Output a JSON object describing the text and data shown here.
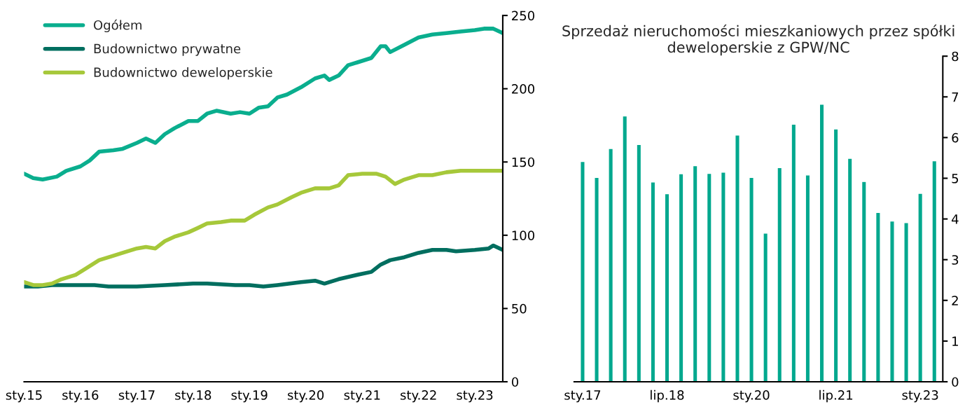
{
  "chart_data": [
    {
      "type": "line",
      "legend": "top left",
      "grid": false,
      "ylim": [
        0,
        250
      ],
      "yticks": [
        0,
        50,
        100,
        150,
        200,
        250
      ],
      "xlim": [
        "2015-01",
        "2023-07"
      ],
      "xticks": [
        {
          "value": "2015-01",
          "label": "sty.15"
        },
        {
          "value": "2016-01",
          "label": "sty.16"
        },
        {
          "value": "2017-01",
          "label": "sty.17"
        },
        {
          "value": "2018-01",
          "label": "sty.18"
        },
        {
          "value": "2019-01",
          "label": "sty.19"
        },
        {
          "value": "2020-01",
          "label": "sty.20"
        },
        {
          "value": "2021-01",
          "label": "sty.21"
        },
        {
          "value": "2022-01",
          "label": "sty.22"
        },
        {
          "value": "2023-01",
          "label": "sty.23"
        }
      ],
      "series": [
        {
          "name": "Ogółem",
          "color": "#0aae8e",
          "x": [
            "2015-01",
            "2015-03",
            "2015-05",
            "2015-08",
            "2015-10",
            "2016-01",
            "2016-03",
            "2016-05",
            "2016-08",
            "2016-10",
            "2017-01",
            "2017-03",
            "2017-05",
            "2017-07",
            "2017-09",
            "2017-12",
            "2018-02",
            "2018-04",
            "2018-06",
            "2018-09",
            "2018-11",
            "2019-01",
            "2019-03",
            "2019-05",
            "2019-07",
            "2019-09",
            "2019-12",
            "2020-03",
            "2020-05",
            "2020-06",
            "2020-08",
            "2020-10",
            "2020-12",
            "2021-03",
            "2021-05",
            "2021-06",
            "2021-07",
            "2021-10",
            "2022-01",
            "2022-04",
            "2022-07",
            "2022-10",
            "2023-01",
            "2023-03",
            "2023-05",
            "2023-07"
          ],
          "values": [
            142,
            139,
            138,
            140,
            144,
            147,
            151,
            157,
            158,
            159,
            163,
            166,
            163,
            169,
            173,
            178,
            178,
            183,
            185,
            183,
            184,
            183,
            187,
            188,
            194,
            196,
            201,
            207,
            209,
            206,
            209,
            216,
            218,
            221,
            229,
            229,
            225,
            230,
            235,
            237,
            238,
            239,
            240,
            241,
            241,
            238
          ]
        },
        {
          "name": "Budownictwo prywatne",
          "color": "#006e5f",
          "x": [
            "2015-01",
            "2015-04",
            "2015-07",
            "2015-12",
            "2016-04",
            "2016-07",
            "2017-01",
            "2017-07",
            "2018-01",
            "2018-04",
            "2018-10",
            "2019-01",
            "2019-04",
            "2019-07",
            "2019-12",
            "2020-03",
            "2020-05",
            "2020-08",
            "2020-12",
            "2021-03",
            "2021-05",
            "2021-07",
            "2021-10",
            "2022-01",
            "2022-04",
            "2022-07",
            "2022-09",
            "2023-01",
            "2023-04",
            "2023-05",
            "2023-07"
          ],
          "values": [
            65,
            65,
            66,
            66,
            66,
            65,
            65,
            66,
            67,
            67,
            66,
            66,
            65,
            66,
            68,
            69,
            67,
            70,
            73,
            75,
            80,
            83,
            85,
            88,
            90,
            90,
            89,
            90,
            91,
            93,
            90
          ]
        },
        {
          "name": "Budownictwo deweloperskie",
          "color": "#a6c83a",
          "x": [
            "2015-01",
            "2015-03",
            "2015-05",
            "2015-07",
            "2015-09",
            "2015-12",
            "2016-02",
            "2016-05",
            "2016-08",
            "2016-10",
            "2017-01",
            "2017-03",
            "2017-05",
            "2017-07",
            "2017-09",
            "2017-12",
            "2018-02",
            "2018-04",
            "2018-07",
            "2018-09",
            "2018-12",
            "2019-02",
            "2019-05",
            "2019-07",
            "2019-10",
            "2019-12",
            "2020-03",
            "2020-06",
            "2020-08",
            "2020-10",
            "2021-01",
            "2021-04",
            "2021-06",
            "2021-08",
            "2021-10",
            "2022-01",
            "2022-04",
            "2022-07",
            "2022-10",
            "2023-01",
            "2023-03",
            "2023-05",
            "2023-07"
          ],
          "values": [
            68,
            66,
            66,
            67,
            70,
            73,
            77,
            83,
            86,
            88,
            91,
            92,
            91,
            96,
            99,
            102,
            105,
            108,
            109,
            110,
            110,
            114,
            119,
            121,
            126,
            129,
            132,
            132,
            134,
            141,
            142,
            142,
            140,
            135,
            138,
            141,
            141,
            143,
            144,
            144,
            144,
            144,
            144
          ]
        }
      ]
    },
    {
      "type": "bar",
      "title": "Sprzedaż nieruchomości mieszkaniowych przez spółki deweloperskie z GPW/NC",
      "grid": false,
      "ylim": [
        0,
        8
      ],
      "yticks": [
        0,
        1,
        2,
        3,
        4,
        5,
        6,
        7,
        8
      ],
      "categories": [
        "sty.17",
        null,
        null,
        null,
        null,
        null,
        "lip.18",
        null,
        null,
        null,
        null,
        null,
        "sty.20",
        null,
        null,
        null,
        null,
        null,
        "lip.21",
        null,
        null,
        null,
        null,
        null,
        "sty.23",
        null
      ],
      "series": [
        {
          "color": "#00a88e",
          "values": [
            5.41,
            5.02,
            5.73,
            6.53,
            5.83,
            4.91,
            4.62,
            5.11,
            5.31,
            5.12,
            5.15,
            6.06,
            5.02,
            3.65,
            5.26,
            6.33,
            5.08,
            6.82,
            6.21,
            5.49,
            4.92,
            4.16,
            3.95,
            3.91,
            4.63,
            5.43
          ]
        }
      ]
    }
  ]
}
